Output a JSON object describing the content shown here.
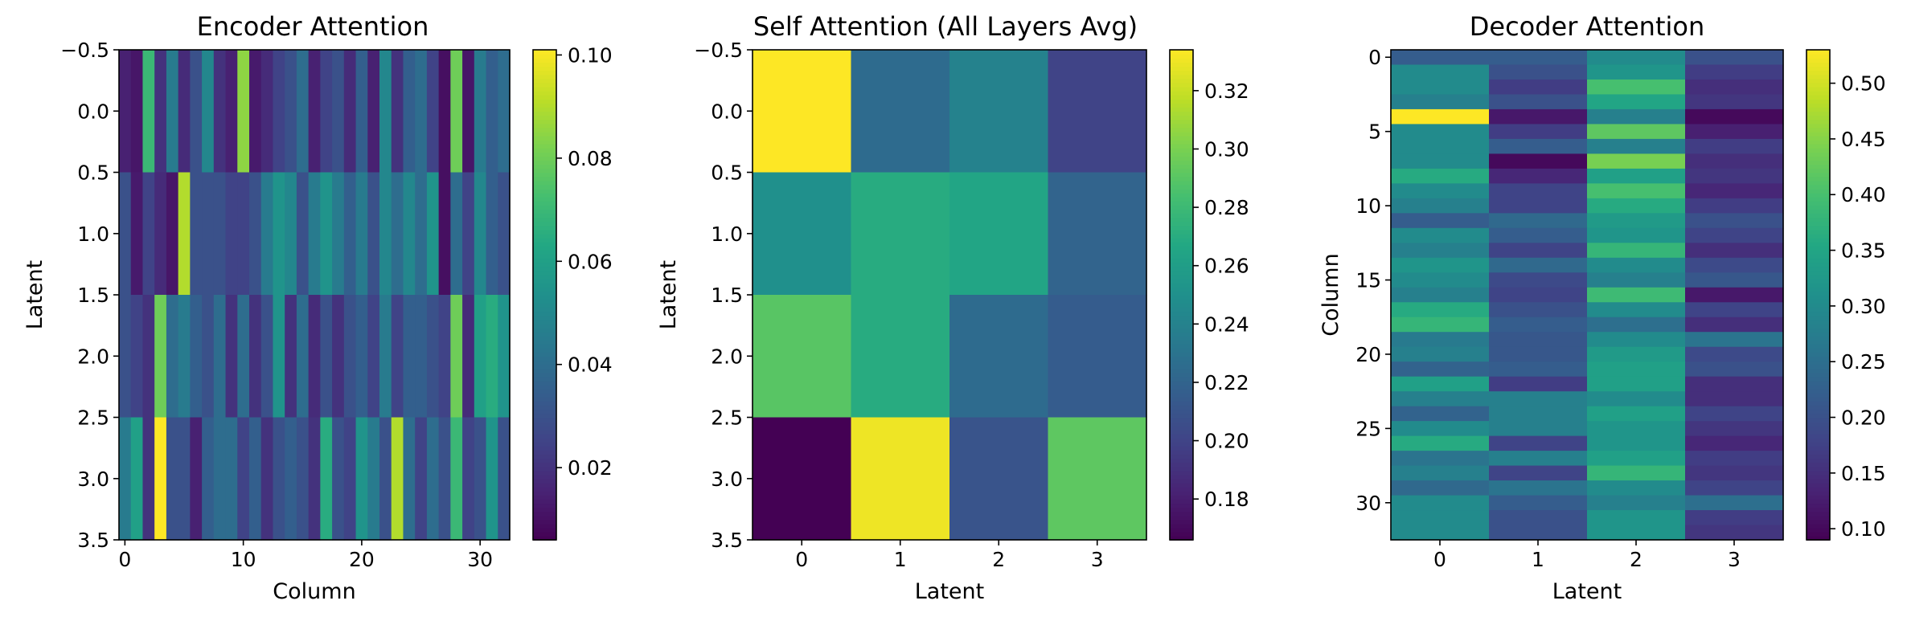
{
  "chart_data": [
    {
      "type": "heatmap",
      "title": "Encoder Attention",
      "xlabel": "Column",
      "ylabel": "Latent",
      "colormap": "viridis",
      "xlim": [
        -0.5,
        32.5
      ],
      "ylim": [
        3.5,
        -0.5
      ],
      "xticks": [
        0,
        10,
        20,
        30
      ],
      "xtick_labels": [
        "0",
        "10",
        "20",
        "30"
      ],
      "yticks": [
        -0.5,
        0.0,
        0.5,
        1.0,
        1.5,
        2.0,
        2.5,
        3.0,
        3.5
      ],
      "ytick_labels": [
        "−0.5",
        "0.0",
        "0.5",
        "1.0",
        "1.5",
        "2.0",
        "2.5",
        "3.0",
        "3.5"
      ],
      "colorbar": {
        "min": 0.006,
        "max": 0.101,
        "ticks": [
          0.02,
          0.04,
          0.06,
          0.08,
          0.1
        ],
        "tick_labels": [
          "0.02",
          "0.04",
          "0.06",
          "0.08",
          "0.10"
        ]
      },
      "values": [
        [
          0.015,
          0.012,
          0.07,
          0.02,
          0.045,
          0.018,
          0.03,
          0.05,
          0.02,
          0.015,
          0.085,
          0.013,
          0.018,
          0.025,
          0.03,
          0.04,
          0.015,
          0.025,
          0.03,
          0.018,
          0.035,
          0.015,
          0.05,
          0.02,
          0.035,
          0.04,
          0.025,
          0.01,
          0.08,
          0.012,
          0.045,
          0.035,
          0.04
        ],
        [
          0.03,
          0.013,
          0.025,
          0.018,
          0.012,
          0.09,
          0.03,
          0.03,
          0.03,
          0.025,
          0.025,
          0.03,
          0.045,
          0.055,
          0.05,
          0.03,
          0.045,
          0.055,
          0.045,
          0.035,
          0.045,
          0.03,
          0.05,
          0.04,
          0.05,
          0.04,
          0.055,
          0.01,
          0.04,
          0.025,
          0.05,
          0.035,
          0.03
        ],
        [
          0.03,
          0.025,
          0.02,
          0.08,
          0.04,
          0.045,
          0.035,
          0.03,
          0.04,
          0.02,
          0.04,
          0.02,
          0.03,
          0.055,
          0.02,
          0.04,
          0.018,
          0.03,
          0.02,
          0.03,
          0.035,
          0.025,
          0.045,
          0.025,
          0.035,
          0.035,
          0.03,
          0.025,
          0.08,
          0.018,
          0.06,
          0.065,
          0.055
        ],
        [
          0.045,
          0.06,
          0.02,
          0.101,
          0.03,
          0.03,
          0.015,
          0.035,
          0.04,
          0.04,
          0.025,
          0.035,
          0.02,
          0.03,
          0.035,
          0.03,
          0.02,
          0.065,
          0.03,
          0.025,
          0.055,
          0.045,
          0.03,
          0.09,
          0.04,
          0.025,
          0.04,
          0.03,
          0.07,
          0.025,
          0.03,
          0.055,
          0.03
        ]
      ]
    },
    {
      "type": "heatmap",
      "title": "Self Attention (All Layers Avg)",
      "xlabel": "Latent",
      "ylabel": "Latent",
      "colormap": "viridis",
      "xlim": [
        -0.5,
        3.5
      ],
      "ylim": [
        3.5,
        -0.5
      ],
      "xticks": [
        0,
        1,
        2,
        3
      ],
      "xtick_labels": [
        "0",
        "1",
        "2",
        "3"
      ],
      "yticks": [
        -0.5,
        0.0,
        0.5,
        1.0,
        1.5,
        2.0,
        2.5,
        3.0,
        3.5
      ],
      "ytick_labels": [
        "−0.5",
        "0.0",
        "0.5",
        "1.0",
        "1.5",
        "2.0",
        "2.5",
        "3.0",
        "3.5"
      ],
      "colorbar": {
        "min": 0.166,
        "max": 0.334,
        "ticks": [
          0.18,
          0.2,
          0.22,
          0.24,
          0.26,
          0.28,
          0.3,
          0.32
        ],
        "tick_labels": [
          "0.18",
          "0.20",
          "0.22",
          "0.24",
          "0.26",
          "0.28",
          "0.30",
          "0.32"
        ]
      },
      "values": [
        [
          0.334,
          0.225,
          0.24,
          0.2
        ],
        [
          0.25,
          0.27,
          0.265,
          0.22
        ],
        [
          0.29,
          0.27,
          0.225,
          0.215
        ],
        [
          0.166,
          0.33,
          0.21,
          0.292
        ]
      ]
    },
    {
      "type": "heatmap",
      "title": "Decoder Attention",
      "xlabel": "Latent",
      "ylabel": "Column",
      "colormap": "viridis",
      "xlim": [
        -0.5,
        3.5
      ],
      "ylim": [
        32.5,
        -0.5
      ],
      "xticks": [
        0,
        1,
        2,
        3
      ],
      "xtick_labels": [
        "0",
        "1",
        "2",
        "3"
      ],
      "yticks": [
        0,
        5,
        10,
        15,
        20,
        25,
        30
      ],
      "ytick_labels": [
        "0",
        "5",
        "10",
        "15",
        "20",
        "25",
        "30"
      ],
      "colorbar": {
        "min": 0.09,
        "max": 0.53,
        "ticks": [
          0.1,
          0.15,
          0.2,
          0.25,
          0.3,
          0.35,
          0.4,
          0.45,
          0.5
        ],
        "tick_labels": [
          "0.10",
          "0.15",
          "0.20",
          "0.25",
          "0.30",
          "0.35",
          "0.40",
          "0.45",
          "0.50"
        ]
      },
      "values": [
        [
          0.22,
          0.22,
          0.3,
          0.2
        ],
        [
          0.3,
          0.2,
          0.32,
          0.17
        ],
        [
          0.3,
          0.17,
          0.4,
          0.15
        ],
        [
          0.28,
          0.2,
          0.35,
          0.16
        ],
        [
          0.53,
          0.12,
          0.28,
          0.1
        ],
        [
          0.3,
          0.17,
          0.42,
          0.13
        ],
        [
          0.3,
          0.22,
          0.28,
          0.17
        ],
        [
          0.3,
          0.1,
          0.44,
          0.15
        ],
        [
          0.36,
          0.14,
          0.34,
          0.16
        ],
        [
          0.3,
          0.18,
          0.4,
          0.14
        ],
        [
          0.28,
          0.18,
          0.36,
          0.17
        ],
        [
          0.22,
          0.24,
          0.33,
          0.2
        ],
        [
          0.3,
          0.22,
          0.32,
          0.18
        ],
        [
          0.28,
          0.18,
          0.38,
          0.15
        ],
        [
          0.32,
          0.24,
          0.3,
          0.19
        ],
        [
          0.3,
          0.19,
          0.28,
          0.21
        ],
        [
          0.28,
          0.18,
          0.39,
          0.12
        ],
        [
          0.36,
          0.2,
          0.3,
          0.18
        ],
        [
          0.38,
          0.22,
          0.25,
          0.15
        ],
        [
          0.27,
          0.21,
          0.3,
          0.26
        ],
        [
          0.28,
          0.21,
          0.33,
          0.19
        ],
        [
          0.23,
          0.22,
          0.34,
          0.2
        ],
        [
          0.34,
          0.17,
          0.34,
          0.15
        ],
        [
          0.28,
          0.28,
          0.3,
          0.15
        ],
        [
          0.23,
          0.28,
          0.34,
          0.18
        ],
        [
          0.3,
          0.28,
          0.32,
          0.16
        ],
        [
          0.36,
          0.18,
          0.32,
          0.14
        ],
        [
          0.26,
          0.28,
          0.34,
          0.17
        ],
        [
          0.28,
          0.18,
          0.38,
          0.16
        ],
        [
          0.24,
          0.26,
          0.3,
          0.18
        ],
        [
          0.3,
          0.22,
          0.28,
          0.25
        ],
        [
          0.3,
          0.2,
          0.32,
          0.17
        ],
        [
          0.3,
          0.2,
          0.32,
          0.16
        ]
      ]
    }
  ]
}
